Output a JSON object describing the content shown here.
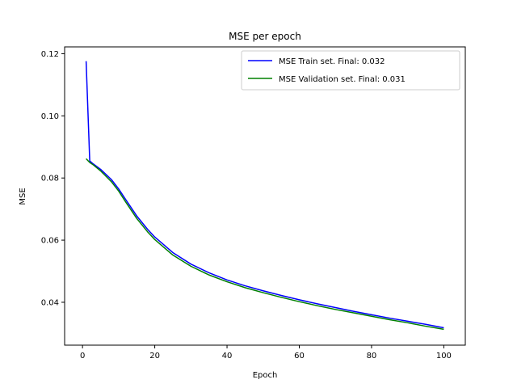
{
  "chart_data": {
    "type": "line",
    "title": "MSE per epoch",
    "xlabel": "Epoch",
    "ylabel": "MSE",
    "xlim": [
      -4.95,
      105.95
    ],
    "ylim": [
      0.0262,
      0.1222
    ],
    "xticks": [
      0,
      20,
      40,
      60,
      80,
      100
    ],
    "yticks": [
      0.04,
      0.06,
      0.08,
      0.1,
      0.12
    ],
    "xtick_labels": [
      "0",
      "20",
      "40",
      "60",
      "80",
      "100"
    ],
    "ytick_labels": [
      "0.04",
      "0.06",
      "0.08",
      "0.10",
      "0.12"
    ],
    "grid": false,
    "legend_position": "top-right",
    "x": [
      1,
      2,
      3,
      5,
      8,
      10,
      12,
      15,
      18,
      20,
      25,
      30,
      35,
      40,
      45,
      50,
      55,
      60,
      65,
      70,
      75,
      80,
      85,
      90,
      95,
      100
    ],
    "series": [
      {
        "name": "MSE Train set. Final: 0.032",
        "color": "#0000ff",
        "values": [
          0.1176,
          0.0855,
          0.0845,
          0.0828,
          0.0795,
          0.0765,
          0.073,
          0.0678,
          0.0635,
          0.061,
          0.056,
          0.0523,
          0.0495,
          0.0472,
          0.0453,
          0.0437,
          0.0422,
          0.0408,
          0.0395,
          0.0383,
          0.0371,
          0.036,
          0.0349,
          0.0339,
          0.0329,
          0.0318
        ]
      },
      {
        "name": "MSE Validation set. Final: 0.031",
        "color": "#008000",
        "values": [
          0.0862,
          0.085,
          0.0842,
          0.0823,
          0.0788,
          0.0758,
          0.0722,
          0.067,
          0.0627,
          0.0602,
          0.0552,
          0.0516,
          0.0488,
          0.0466,
          0.0447,
          0.0431,
          0.0416,
          0.0402,
          0.0389,
          0.0377,
          0.0366,
          0.0355,
          0.0344,
          0.0334,
          0.0323,
          0.0313
        ]
      }
    ]
  }
}
